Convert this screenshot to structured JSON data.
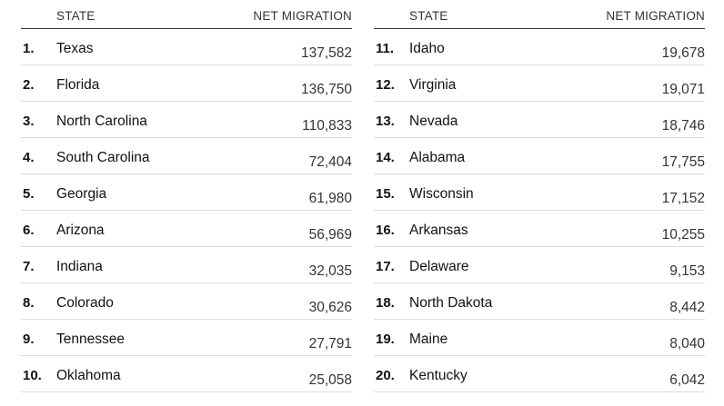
{
  "header": {
    "state_label": "STATE",
    "net_migration_label": "NET MIGRATION"
  },
  "left_rows": [
    {
      "rank": "1.",
      "state": "Texas",
      "value": "137,582"
    },
    {
      "rank": "2.",
      "state": "Florida",
      "value": "136,750"
    },
    {
      "rank": "3.",
      "state": "North Carolina",
      "value": "110,833"
    },
    {
      "rank": "4.",
      "state": "South Carolina",
      "value": "72,404"
    },
    {
      "rank": "5.",
      "state": "Georgia",
      "value": "61,980"
    },
    {
      "rank": "6.",
      "state": "Arizona",
      "value": "56,969"
    },
    {
      "rank": "7.",
      "state": "Indiana",
      "value": "32,035"
    },
    {
      "rank": "8.",
      "state": "Colorado",
      "value": "30,626"
    },
    {
      "rank": "9.",
      "state": "Tennessee",
      "value": "27,791"
    },
    {
      "rank": "10.",
      "state": "Oklahoma",
      "value": "25,058"
    }
  ],
  "right_rows": [
    {
      "rank": "11.",
      "state": "Idaho",
      "value": "19,678"
    },
    {
      "rank": "12.",
      "state": "Virginia",
      "value": "19,071"
    },
    {
      "rank": "13.",
      "state": "Nevada",
      "value": "18,746"
    },
    {
      "rank": "14.",
      "state": "Alabama",
      "value": "17,755"
    },
    {
      "rank": "15.",
      "state": "Wisconsin",
      "value": "17,152"
    },
    {
      "rank": "16.",
      "state": "Arkansas",
      "value": "10,255"
    },
    {
      "rank": "17.",
      "state": "Delaware",
      "value": "9,153"
    },
    {
      "rank": "18.",
      "state": "North Dakota",
      "value": "8,442"
    },
    {
      "rank": "19.",
      "state": "Maine",
      "value": "8,040"
    },
    {
      "rank": "20.",
      "state": "Kentucky",
      "value": "6,042"
    }
  ]
}
